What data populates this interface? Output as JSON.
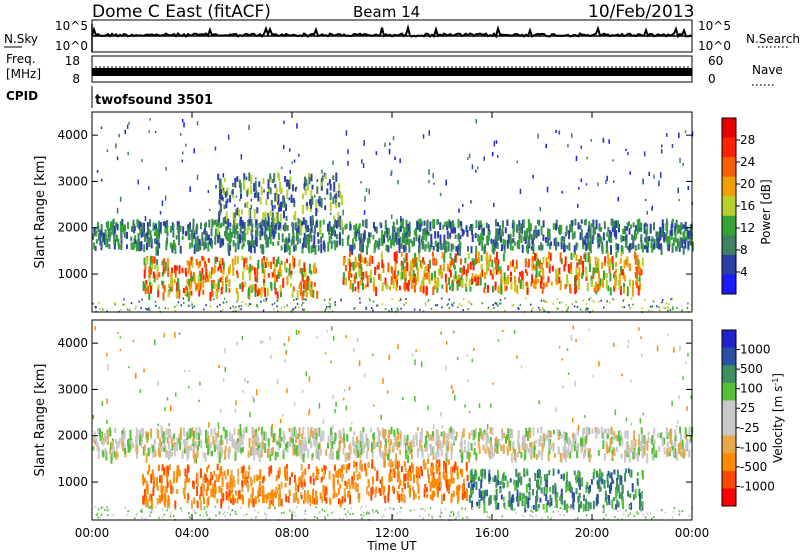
{
  "header": {
    "station": "Dome C East (fitACF)",
    "beam": "Beam 14",
    "date": "10/Feb/2013"
  },
  "left_labels": {
    "nsky": "N.Sky",
    "freq_line1": "Freq.",
    "freq_line2": "[MHz]",
    "cpid": "CPID"
  },
  "right_labels": {
    "nsearch": "N.Search",
    "nave": "Nave"
  },
  "cpid_value": "twofsound 3501",
  "noise_axis": {
    "left_ticks": [
      "10^5",
      "10^0"
    ],
    "right_ticks": [
      "10^5",
      "10^0"
    ]
  },
  "freq_axis": {
    "left_ticks": [
      "18",
      "8"
    ],
    "right_ticks": [
      "60",
      "0"
    ]
  },
  "colors": {
    "power_scale": [
      "#1a1aff",
      "#2b3fa8",
      "#3f7f62",
      "#34a534",
      "#b5d12a",
      "#f2a000",
      "#f55f00",
      "#ff2200",
      "#e80000"
    ],
    "velocity_scale": [
      "#ff0000",
      "#ff4a00",
      "#ff8a00",
      "#e8a848",
      "#c8c8c8",
      "#c8c8c8",
      "#55c03a",
      "#3d8f60",
      "#2a4fa3",
      "#2222cc"
    ]
  },
  "chart_data": [
    {
      "type": "heatmap",
      "title": "",
      "x": [
        "00:00",
        "04:00",
        "08:00",
        "12:00",
        "16:00",
        "20:00",
        "00:00"
      ],
      "xlabel": "",
      "ylabel": "Slant Range [km]",
      "y_ticks": [
        "4000",
        "3000",
        "2000",
        "1000"
      ],
      "ylim": [
        180,
        4500
      ],
      "colorbar": {
        "label": "Power [dB]",
        "ticks": [
          "28",
          "24",
          "20",
          "16",
          "12",
          "8",
          "4"
        ],
        "range": [
          0,
          32
        ]
      },
      "bands": [
        {
          "x_range": [
            "00:00",
            "24:00"
          ],
          "y_range": [
            1600,
            2200
          ],
          "level": "8-12"
        },
        {
          "x_range": [
            "02:30",
            "09:30"
          ],
          "y_range": [
            600,
            1400
          ],
          "level": "20-30"
        },
        {
          "x_range": [
            "10:00",
            "22:00"
          ],
          "y_range": [
            700,
            1500
          ],
          "level": "16-28"
        },
        {
          "x_range": [
            "05:00",
            "10:00"
          ],
          "y_range": [
            2000,
            3200
          ],
          "level": "4-12"
        }
      ]
    },
    {
      "type": "heatmap",
      "title": "",
      "x": [
        "00:00",
        "04:00",
        "08:00",
        "12:00",
        "16:00",
        "20:00",
        "00:00"
      ],
      "xlabel": "Time UT",
      "ylabel": "Slant Range [km]",
      "y_ticks": [
        "4000",
        "3000",
        "2000",
        "1000"
      ],
      "ylim": [
        180,
        4500
      ],
      "colorbar": {
        "label": "Velocity [m s-1]",
        "ticks": [
          "1000",
          "500",
          "100",
          "25",
          "-25",
          "-100",
          "-500",
          "-1000"
        ],
        "range": [
          -1000,
          1000
        ]
      },
      "bands": [
        {
          "x_range": [
            "02:30",
            "10:00"
          ],
          "y_range": [
            600,
            1400
          ],
          "level": "-100 to -500"
        },
        {
          "x_range": [
            "10:30",
            "15:00"
          ],
          "y_range": [
            700,
            1500
          ],
          "level": "-100 to -500"
        },
        {
          "x_range": [
            "15:00",
            "22:30"
          ],
          "y_range": [
            500,
            1300
          ],
          "level": "100 to 500"
        },
        {
          "x_range": [
            "00:00",
            "24:00"
          ],
          "y_range": [
            1600,
            2200
          ],
          "level": "-25 to 25"
        }
      ]
    }
  ]
}
